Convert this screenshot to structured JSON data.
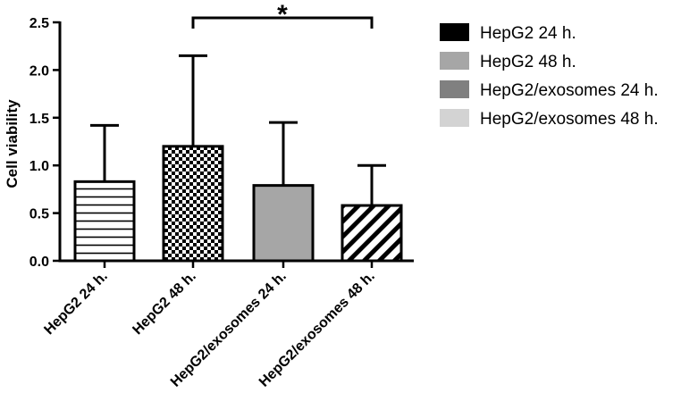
{
  "chart_data": {
    "type": "bar",
    "title": "",
    "xlabel": "",
    "ylabel": "Cell viability",
    "ylim": [
      0,
      2.5
    ],
    "yticks": [
      "0.0",
      "0.5",
      "1.0",
      "1.5",
      "2.0",
      "2.5"
    ],
    "categories": [
      "HepG2 24 h.",
      "HepG2 48 h.",
      "HepG2/exosomes 24 h.",
      "HepG2/exosomes 48 h."
    ],
    "values": [
      0.83,
      1.2,
      0.79,
      0.58
    ],
    "error_upper": [
      1.42,
      2.15,
      1.45,
      1.0
    ],
    "patterns": [
      "horizontal-lines",
      "checkerboard",
      "solid-gray",
      "diagonal-stripes"
    ],
    "bar_fill": "#a6a6a6",
    "grid": false,
    "legend": {
      "position": "right",
      "entries": [
        {
          "label": "HepG2 24 h.",
          "color": "#000000"
        },
        {
          "label": "HepG2 48 h.",
          "color": "#a6a6a6"
        },
        {
          "label": "HepG2/exosomes 24 h.",
          "color": "#808080"
        },
        {
          "label": "HepG2/exosomes 48 h.",
          "color": "#d3d3d3"
        }
      ]
    },
    "significance": [
      {
        "from": 1,
        "to": 3,
        "label": "*"
      }
    ]
  }
}
